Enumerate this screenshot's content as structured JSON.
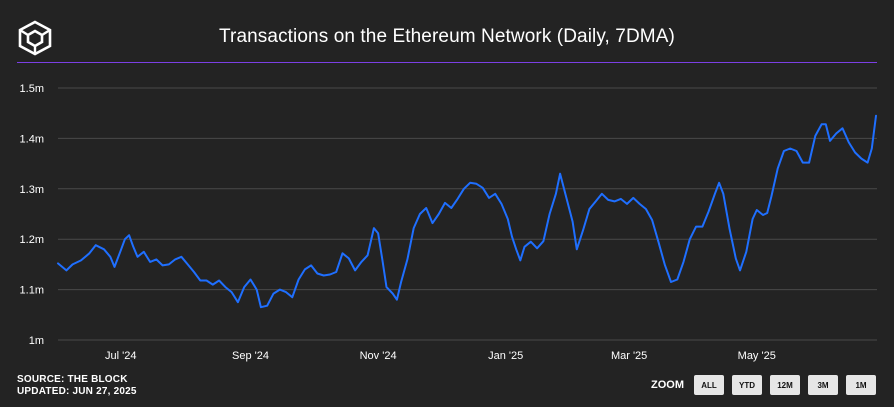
{
  "header": {
    "title": "Transactions on the Ethereum Network (Daily, 7DMA)",
    "logo_icon": "the-block-cube-logo",
    "accent_color": "#7b3fe4"
  },
  "footer": {
    "source": "SOURCE: THE BLOCK",
    "updated": "UPDATED: JUN 27, 2025"
  },
  "zoom": {
    "label": "ZOOM",
    "buttons": [
      "ALL",
      "YTD",
      "12M",
      "3M",
      "1M"
    ]
  },
  "chart_data": {
    "type": "line",
    "title": "Transactions on the Ethereum Network (Daily, 7DMA)",
    "line_color": "#1f6fff",
    "grid": true,
    "ylim": [
      1000000,
      1500000
    ],
    "y_ticks": [
      {
        "value": 1000000,
        "label": "1m"
      },
      {
        "value": 1100000,
        "label": "1.1m"
      },
      {
        "value": 1200000,
        "label": "1.2m"
      },
      {
        "value": 1300000,
        "label": "1.3m"
      },
      {
        "value": 1400000,
        "label": "1.4m"
      },
      {
        "value": 1500000,
        "label": "1.5m"
      }
    ],
    "xlim": [
      "2024-06-01",
      "2025-06-27"
    ],
    "x_ticks": [
      {
        "date": "2024-07-01",
        "label": "Jul '24"
      },
      {
        "date": "2024-09-01",
        "label": "Sep '24"
      },
      {
        "date": "2024-11-01",
        "label": "Nov '24"
      },
      {
        "date": "2025-01-01",
        "label": "Jan '25"
      },
      {
        "date": "2025-03-01",
        "label": "Mar '25"
      },
      {
        "date": "2025-05-01",
        "label": "May '25"
      }
    ],
    "series": [
      {
        "points": [
          [
            "2024-06-01",
            1152000
          ],
          [
            "2024-06-05",
            1138000
          ],
          [
            "2024-06-08",
            1150000
          ],
          [
            "2024-06-12",
            1158000
          ],
          [
            "2024-06-16",
            1172000
          ],
          [
            "2024-06-19",
            1188000
          ],
          [
            "2024-06-23",
            1180000
          ],
          [
            "2024-06-26",
            1165000
          ],
          [
            "2024-06-28",
            1145000
          ],
          [
            "2024-07-01",
            1178000
          ],
          [
            "2024-07-03",
            1200000
          ],
          [
            "2024-07-05",
            1208000
          ],
          [
            "2024-07-07",
            1185000
          ],
          [
            "2024-07-09",
            1165000
          ],
          [
            "2024-07-12",
            1175000
          ],
          [
            "2024-07-15",
            1155000
          ],
          [
            "2024-07-18",
            1160000
          ],
          [
            "2024-07-21",
            1148000
          ],
          [
            "2024-07-24",
            1150000
          ],
          [
            "2024-07-27",
            1160000
          ],
          [
            "2024-07-30",
            1165000
          ],
          [
            "2024-08-02",
            1150000
          ],
          [
            "2024-08-05",
            1135000
          ],
          [
            "2024-08-08",
            1118000
          ],
          [
            "2024-08-11",
            1118000
          ],
          [
            "2024-08-14",
            1110000
          ],
          [
            "2024-08-17",
            1118000
          ],
          [
            "2024-08-20",
            1105000
          ],
          [
            "2024-08-23",
            1095000
          ],
          [
            "2024-08-26",
            1075000
          ],
          [
            "2024-08-29",
            1105000
          ],
          [
            "2024-09-01",
            1120000
          ],
          [
            "2024-09-04",
            1100000
          ],
          [
            "2024-09-06",
            1065000
          ],
          [
            "2024-09-09",
            1068000
          ],
          [
            "2024-09-12",
            1092000
          ],
          [
            "2024-09-15",
            1100000
          ],
          [
            "2024-09-18",
            1095000
          ],
          [
            "2024-09-21",
            1085000
          ],
          [
            "2024-09-24",
            1120000
          ],
          [
            "2024-09-27",
            1140000
          ],
          [
            "2024-09-30",
            1148000
          ],
          [
            "2024-10-03",
            1132000
          ],
          [
            "2024-10-06",
            1128000
          ],
          [
            "2024-10-09",
            1130000
          ],
          [
            "2024-10-12",
            1135000
          ],
          [
            "2024-10-15",
            1172000
          ],
          [
            "2024-10-18",
            1162000
          ],
          [
            "2024-10-21",
            1138000
          ],
          [
            "2024-10-24",
            1155000
          ],
          [
            "2024-10-27",
            1168000
          ],
          [
            "2024-10-30",
            1222000
          ],
          [
            "2024-11-01",
            1212000
          ],
          [
            "2024-11-03",
            1160000
          ],
          [
            "2024-11-05",
            1105000
          ],
          [
            "2024-11-08",
            1092000
          ],
          [
            "2024-11-10",
            1080000
          ],
          [
            "2024-11-12",
            1115000
          ],
          [
            "2024-11-15",
            1160000
          ],
          [
            "2024-11-18",
            1222000
          ],
          [
            "2024-11-21",
            1250000
          ],
          [
            "2024-11-24",
            1262000
          ],
          [
            "2024-11-27",
            1232000
          ],
          [
            "2024-11-30",
            1250000
          ],
          [
            "2024-12-03",
            1272000
          ],
          [
            "2024-12-06",
            1262000
          ],
          [
            "2024-12-09",
            1280000
          ],
          [
            "2024-12-12",
            1300000
          ],
          [
            "2024-12-15",
            1312000
          ],
          [
            "2024-12-18",
            1310000
          ],
          [
            "2024-12-21",
            1302000
          ],
          [
            "2024-12-24",
            1282000
          ],
          [
            "2024-12-27",
            1290000
          ],
          [
            "2024-12-30",
            1270000
          ],
          [
            "2025-01-02",
            1240000
          ],
          [
            "2025-01-04",
            1205000
          ],
          [
            "2025-01-06",
            1180000
          ],
          [
            "2025-01-08",
            1158000
          ],
          [
            "2025-01-10",
            1185000
          ],
          [
            "2025-01-13",
            1195000
          ],
          [
            "2025-01-16",
            1182000
          ],
          [
            "2025-01-19",
            1196000
          ],
          [
            "2025-01-22",
            1250000
          ],
          [
            "2025-01-25",
            1290000
          ],
          [
            "2025-01-27",
            1330000
          ],
          [
            "2025-01-30",
            1282000
          ],
          [
            "2025-02-02",
            1235000
          ],
          [
            "2025-02-04",
            1180000
          ],
          [
            "2025-02-07",
            1218000
          ],
          [
            "2025-02-10",
            1260000
          ],
          [
            "2025-02-13",
            1275000
          ],
          [
            "2025-02-16",
            1290000
          ],
          [
            "2025-02-19",
            1278000
          ],
          [
            "2025-02-22",
            1275000
          ],
          [
            "2025-02-25",
            1280000
          ],
          [
            "2025-02-28",
            1270000
          ],
          [
            "2025-03-03",
            1282000
          ],
          [
            "2025-03-06",
            1270000
          ],
          [
            "2025-03-09",
            1260000
          ],
          [
            "2025-03-12",
            1238000
          ],
          [
            "2025-03-15",
            1195000
          ],
          [
            "2025-03-18",
            1150000
          ],
          [
            "2025-03-21",
            1115000
          ],
          [
            "2025-03-24",
            1120000
          ],
          [
            "2025-03-27",
            1155000
          ],
          [
            "2025-03-30",
            1200000
          ],
          [
            "2025-04-02",
            1225000
          ],
          [
            "2025-04-05",
            1225000
          ],
          [
            "2025-04-08",
            1255000
          ],
          [
            "2025-04-11",
            1290000
          ],
          [
            "2025-04-13",
            1312000
          ],
          [
            "2025-04-15",
            1290000
          ],
          [
            "2025-04-18",
            1220000
          ],
          [
            "2025-04-21",
            1162000
          ],
          [
            "2025-04-23",
            1138000
          ],
          [
            "2025-04-26",
            1175000
          ],
          [
            "2025-04-29",
            1240000
          ],
          [
            "2025-05-01",
            1258000
          ],
          [
            "2025-05-04",
            1248000
          ],
          [
            "2025-05-06",
            1252000
          ],
          [
            "2025-05-08",
            1285000
          ],
          [
            "2025-05-11",
            1340000
          ],
          [
            "2025-05-14",
            1375000
          ],
          [
            "2025-05-17",
            1380000
          ],
          [
            "2025-05-20",
            1375000
          ],
          [
            "2025-05-23",
            1352000
          ],
          [
            "2025-05-26",
            1352000
          ],
          [
            "2025-05-29",
            1405000
          ],
          [
            "2025-06-01",
            1428000
          ],
          [
            "2025-06-03",
            1428000
          ],
          [
            "2025-06-05",
            1395000
          ],
          [
            "2025-06-08",
            1410000
          ],
          [
            "2025-06-11",
            1420000
          ],
          [
            "2025-06-14",
            1392000
          ],
          [
            "2025-06-17",
            1372000
          ],
          [
            "2025-06-20",
            1360000
          ],
          [
            "2025-06-23",
            1352000
          ],
          [
            "2025-06-25",
            1380000
          ],
          [
            "2025-06-27",
            1445000
          ]
        ]
      }
    ]
  }
}
